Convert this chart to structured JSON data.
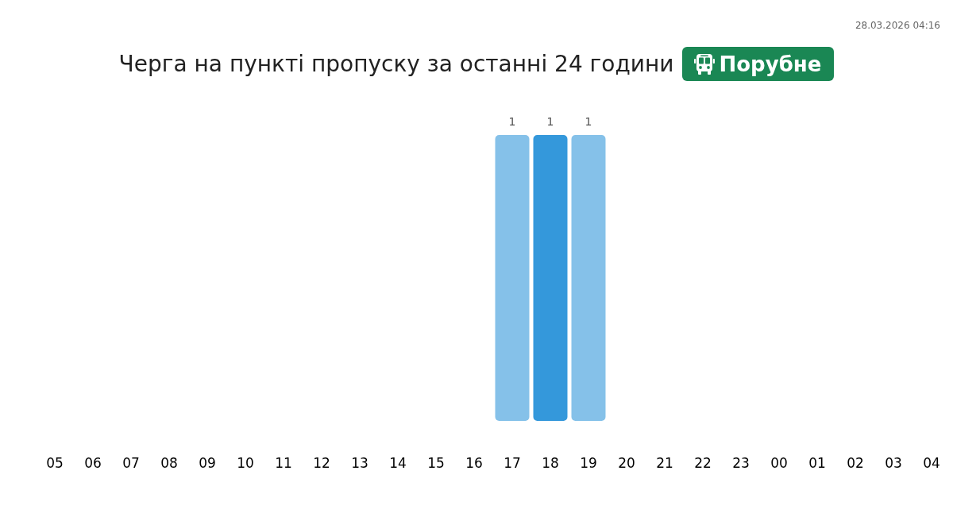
{
  "chart_data": {
    "type": "bar",
    "title": "Черга на пункті пропуску за останні 24 години",
    "subtitle": "Порубне",
    "annotations": [
      "28.03.2026 04:16"
    ],
    "categories": [
      "05",
      "06",
      "07",
      "08",
      "09",
      "10",
      "11",
      "12",
      "13",
      "14",
      "15",
      "16",
      "17",
      "18",
      "19",
      "20",
      "21",
      "22",
      "23",
      "00",
      "01",
      "02",
      "03",
      "04"
    ],
    "values": [
      null,
      null,
      null,
      null,
      null,
      null,
      null,
      null,
      null,
      null,
      null,
      null,
      1,
      1,
      1,
      null,
      null,
      null,
      null,
      null,
      null,
      null,
      null,
      null
    ],
    "colors": [
      "#85c1e9",
      "#85c1e9",
      "#85c1e9",
      "#85c1e9",
      "#85c1e9",
      "#85c1e9",
      "#85c1e9",
      "#85c1e9",
      "#85c1e9",
      "#85c1e9",
      "#85c1e9",
      "#85c1e9",
      "#85c1e9",
      "#3498db",
      "#85c1e9",
      "#85c1e9",
      "#85c1e9",
      "#85c1e9",
      "#85c1e9",
      "#85c1e9",
      "#85c1e9",
      "#85c1e9",
      "#85c1e9",
      "#85c1e9"
    ],
    "value_labels": [
      null,
      null,
      null,
      null,
      null,
      null,
      null,
      null,
      null,
      null,
      null,
      null,
      "1",
      "1",
      "1",
      null,
      null,
      null,
      null,
      null,
      null,
      null,
      null,
      null
    ]
  }
}
